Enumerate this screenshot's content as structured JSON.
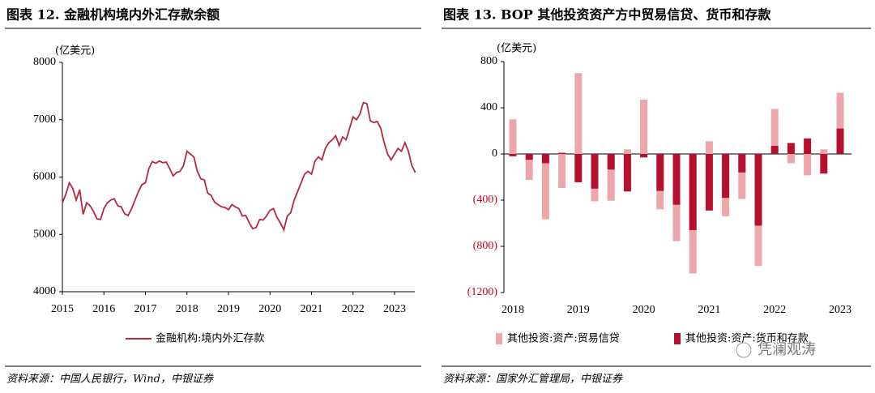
{
  "chart_data": [
    {
      "type": "line",
      "title": "图表 12. 金融机构境内外汇存款余额",
      "y_label": "(亿美元)",
      "source": "资料来源：中国人民银行，Wind，中银证券",
      "categories": [
        "2015",
        null,
        null,
        null,
        null,
        null,
        null,
        null,
        null,
        null,
        null,
        null,
        "2016",
        null,
        null,
        null,
        null,
        null,
        null,
        null,
        null,
        null,
        null,
        null,
        "2017",
        null,
        null,
        null,
        null,
        null,
        null,
        null,
        null,
        null,
        null,
        null,
        "2018",
        null,
        null,
        null,
        null,
        null,
        null,
        null,
        null,
        null,
        null,
        null,
        "2019",
        null,
        null,
        null,
        null,
        null,
        null,
        null,
        null,
        null,
        null,
        null,
        "2020",
        null,
        null,
        null,
        null,
        null,
        null,
        null,
        null,
        null,
        null,
        null,
        "2021",
        null,
        null,
        null,
        null,
        null,
        null,
        null,
        null,
        null,
        null,
        null,
        "2022",
        null,
        null,
        null,
        null,
        null,
        null,
        null,
        null,
        null,
        null,
        null,
        "2023",
        null,
        null,
        null,
        null,
        null,
        null
      ],
      "series": [
        {
          "name": "金融机构:境内外汇存款",
          "color": "#b5283f",
          "values": [
            5550,
            5700,
            5900,
            5800,
            5600,
            5780,
            5350,
            5550,
            5500,
            5400,
            5270,
            5260,
            5450,
            5550,
            5600,
            5620,
            5500,
            5480,
            5360,
            5330,
            5450,
            5600,
            5750,
            5870,
            5900,
            6150,
            6270,
            6240,
            6280,
            6250,
            6260,
            6150,
            6020,
            6080,
            6100,
            6200,
            6450,
            6400,
            6350,
            6100,
            5970,
            5950,
            5720,
            5680,
            5560,
            5520,
            5480,
            5470,
            5430,
            5520,
            5480,
            5450,
            5320,
            5330,
            5200,
            5100,
            5120,
            5260,
            5250,
            5320,
            5420,
            5450,
            5300,
            5200,
            5080,
            5320,
            5380,
            5600,
            5750,
            5900,
            6050,
            6100,
            6050,
            6280,
            6350,
            6300,
            6500,
            6600,
            6650,
            6720,
            6550,
            6700,
            6650,
            6850,
            7050,
            7000,
            7100,
            7300,
            7280,
            6980,
            6950,
            6970,
            6850,
            6600,
            6400,
            6300,
            6400,
            6500,
            6450,
            6600,
            6450,
            6200,
            6080
          ]
        }
      ],
      "ylim": [
        4000,
        8000
      ],
      "yticks": [
        4000,
        5000,
        6000,
        7000,
        8000
      ],
      "legend": "bottom"
    },
    {
      "type": "bar",
      "title": "图表 13. BOP 其他投资资产方中贸易信贷、货币和存款",
      "y_label": "(亿美元)",
      "source": "资料来源：国家外汇管理局，中银证券",
      "categories": [
        "2018",
        null,
        null,
        null,
        "2019",
        null,
        null,
        null,
        "2020",
        null,
        null,
        null,
        "2021",
        null,
        null,
        null,
        "2022",
        null,
        null,
        null,
        "2023"
      ],
      "series": [
        {
          "name": "其他投资:资产:贸易信贷",
          "color": "#eba7a9",
          "values": [
            300,
            -225,
            -565,
            -295,
            700,
            -410,
            -405,
            40,
            470,
            -480,
            -755,
            -1035,
            110,
            -540,
            -390,
            -970,
            390,
            -80,
            -185,
            40,
            530
          ]
        },
        {
          "name": "其他投资:资产:货币和存款",
          "color": "#b5102e",
          "values": [
            -20,
            -50,
            -80,
            10,
            -245,
            -300,
            -135,
            -325,
            -30,
            -320,
            -440,
            -660,
            -490,
            -380,
            -160,
            -620,
            70,
            95,
            135,
            -170,
            220
          ]
        }
      ],
      "ylim": [
        -1200,
        800
      ],
      "yticks": [
        {
          "value": -1200,
          "label": "(1200)"
        },
        {
          "value": -800,
          "label": "(800)"
        },
        {
          "value": -400,
          "label": "(400)"
        },
        0,
        400,
        800
      ],
      "legend": "bottom"
    }
  ],
  "watermark": "凭澜观涛"
}
